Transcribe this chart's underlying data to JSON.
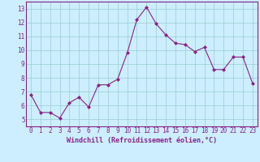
{
  "x": [
    0,
    1,
    2,
    3,
    4,
    5,
    6,
    7,
    8,
    9,
    10,
    11,
    12,
    13,
    14,
    15,
    16,
    17,
    18,
    19,
    20,
    21,
    22,
    23
  ],
  "y": [
    6.8,
    5.5,
    5.5,
    5.1,
    6.2,
    6.6,
    5.9,
    7.5,
    7.5,
    7.9,
    9.8,
    12.2,
    13.1,
    11.9,
    11.1,
    10.5,
    10.4,
    9.9,
    10.2,
    8.6,
    8.6,
    9.5,
    9.5,
    7.6
  ],
  "line_color": "#882288",
  "marker": "D",
  "marker_size": 2.0,
  "bg_color": "#cceeff",
  "grid_color": "#99cccc",
  "xlabel": "Windchill (Refroidissement éolien,°C)",
  "xlabel_color": "#882288",
  "tick_color": "#882288",
  "ylim": [
    4.5,
    13.5
  ],
  "xlim": [
    -0.5,
    23.5
  ],
  "yticks": [
    5,
    6,
    7,
    8,
    9,
    10,
    11,
    12,
    13
  ],
  "xticks": [
    0,
    1,
    2,
    3,
    4,
    5,
    6,
    7,
    8,
    9,
    10,
    11,
    12,
    13,
    14,
    15,
    16,
    17,
    18,
    19,
    20,
    21,
    22,
    23
  ],
  "tick_fontsize": 5.5,
  "ylabel_fontsize": 5.5,
  "xlabel_fontsize": 6.0
}
